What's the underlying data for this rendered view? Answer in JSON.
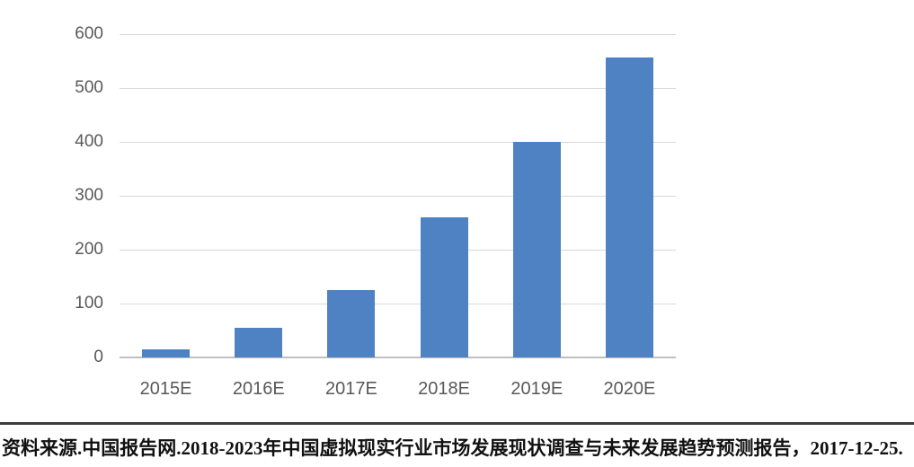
{
  "chart_data": {
    "type": "bar",
    "categories": [
      "2015E",
      "2016E",
      "2017E",
      "2018E",
      "2019E",
      "2020E"
    ],
    "values": [
      15,
      55,
      125,
      260,
      400,
      556
    ],
    "title": "",
    "xlabel": "",
    "ylabel": "",
    "ylim": [
      0,
      600
    ],
    "yticks": [
      0,
      100,
      200,
      300,
      400,
      500,
      600
    ],
    "grid": true,
    "legend_position": "none",
    "bar_color": "#4f82c2",
    "gridline_color": "#d9d9d9",
    "axis_line_color": "#bfbfbf",
    "tick_label_color": "#595959"
  },
  "caption": {
    "text": "资料来源.中国报告网.2018-2023年中国虚拟现实行业市场发展现状调查与未来发展趋势预测报告，2017-12-25.",
    "rule_color": "#3d3d3d"
  }
}
